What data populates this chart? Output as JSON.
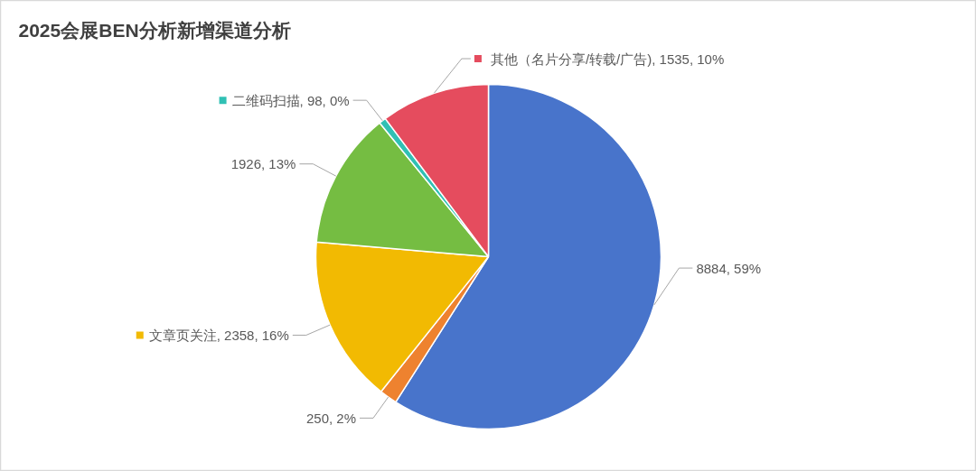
{
  "chart_data": {
    "type": "pie",
    "title": "2025会展BEN分析新增渠道分析",
    "categories": [
      null,
      null,
      "文章页关注",
      null,
      "二维码扫描",
      "其他（名片分享/转载/广告)"
    ],
    "values": [
      8884,
      250,
      2358,
      1926,
      98,
      1535
    ],
    "colors": [
      "#4874cb",
      "#ee822f",
      "#f2ba02",
      "#75bd42",
      "#30c0b4",
      "#e54c5e"
    ],
    "value_labels": [
      "8884, 59%",
      "250, 2%",
      "2358, 16%",
      "1926, 13%",
      "98, 0%",
      "1535, 10%"
    ],
    "legend": "left"
  }
}
